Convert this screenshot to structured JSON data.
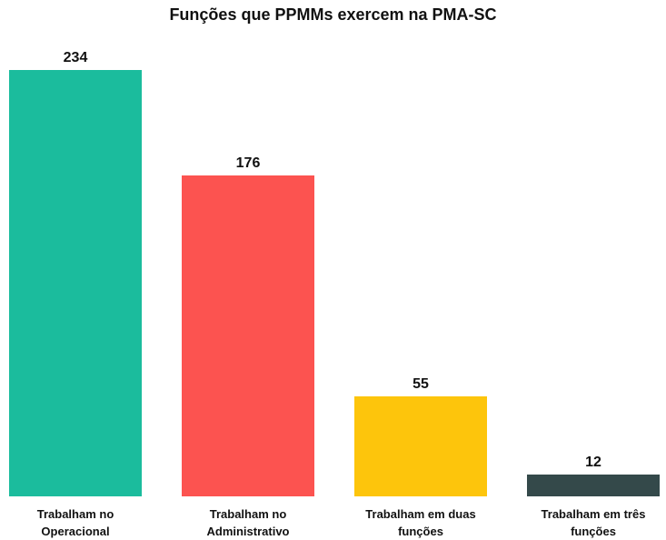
{
  "chart_data": {
    "type": "bar",
    "title": "Funções que PPMMs exercem na PMA-SC",
    "categories": [
      "Trabalham no Operacional",
      "Trabalham no Administrativo",
      "Trabalham em duas funções",
      "Trabalham em três funções"
    ],
    "values": [
      234,
      176,
      55,
      12
    ],
    "colors": [
      "#1bbc9d",
      "#fc5350",
      "#fdc50c",
      "#34494a"
    ]
  }
}
